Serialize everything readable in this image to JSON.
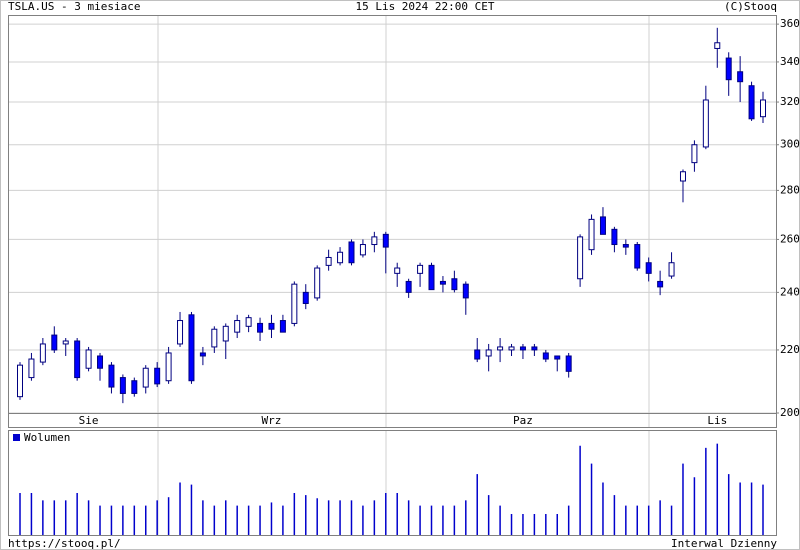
{
  "header": {
    "title": "TSLA.US - 3 miesiace",
    "date": "15 Lis 2024 22:00 CET",
    "credit": "(C)Stooq"
  },
  "footer": {
    "url": "https://stooq.pl/",
    "interval": "Interwal Dzienny"
  },
  "chart_data": [
    {
      "type": "candlestick",
      "log_scale": true,
      "grid": true,
      "up_color": "#ffffff",
      "down_color": "#0000ff",
      "categories": [
        null,
        null,
        null,
        null,
        null,
        null,
        "Sie",
        null,
        null,
        null,
        null,
        null,
        null,
        null,
        null,
        null,
        null,
        null,
        null,
        null,
        null,
        null,
        "Wrz",
        null,
        null,
        null,
        null,
        null,
        null,
        null,
        null,
        null,
        null,
        null,
        null,
        null,
        null,
        null,
        null,
        null,
        null,
        null,
        null,
        null,
        "Paz",
        null,
        null,
        null,
        null,
        null,
        null,
        null,
        null,
        null,
        null,
        null,
        null,
        null,
        null,
        null,
        null,
        "Lis",
        null,
        null,
        null,
        null
      ],
      "open": [
        205,
        211,
        216,
        225,
        222,
        223,
        214,
        218,
        215,
        211,
        210,
        208,
        214,
        210,
        222,
        232,
        219,
        221,
        223,
        226,
        228,
        229,
        229,
        230,
        229,
        240,
        238,
        250,
        251,
        259,
        254,
        258,
        262,
        247,
        244,
        247,
        250,
        244,
        245,
        243,
        220,
        218,
        220,
        220,
        221,
        221,
        219,
        218,
        218,
        245,
        256,
        269,
        264,
        258,
        258,
        251,
        244,
        246,
        284,
        292,
        299,
        347,
        342,
        335,
        328,
        313
      ],
      "high": [
        216,
        219,
        224,
        228,
        224,
        224,
        221,
        219,
        216,
        212,
        211,
        215,
        216,
        221,
        233,
        233,
        221,
        228,
        229,
        232,
        232,
        231,
        232,
        232,
        244,
        243,
        250,
        256,
        257,
        260,
        260,
        263,
        263,
        251,
        245,
        251,
        251,
        246,
        248,
        244,
        224,
        222,
        224,
        222,
        222,
        222,
        220,
        218,
        219,
        262,
        270,
        273,
        265,
        260,
        259,
        253,
        248,
        255,
        289,
        302,
        328,
        358,
        345,
        343,
        330,
        325
      ],
      "low": [
        204,
        210,
        215,
        219,
        218,
        210,
        213,
        210,
        206,
        203,
        205,
        206,
        208,
        209,
        221,
        209,
        215,
        219,
        217,
        224,
        226,
        223,
        224,
        226,
        228,
        234,
        237,
        248,
        250,
        250,
        253,
        255,
        247,
        242,
        238,
        242,
        241,
        240,
        240,
        232,
        216,
        213,
        216,
        218,
        217,
        218,
        216,
        213,
        211,
        242,
        254,
        262,
        255,
        254,
        248,
        244,
        239,
        245,
        275,
        288,
        298,
        337,
        323,
        320,
        311,
        310
      ],
      "close": [
        215,
        217,
        222,
        220,
        223,
        211,
        220,
        214,
        208,
        206,
        206,
        214,
        209,
        219,
        230,
        210,
        218,
        227,
        228,
        230,
        231,
        226,
        227,
        226,
        243,
        236,
        249,
        253,
        255,
        251,
        258,
        261,
        257,
        249,
        240,
        250,
        241,
        243,
        241,
        238,
        217,
        220,
        221,
        221,
        220,
        220,
        217,
        217,
        213,
        261,
        268,
        262,
        258,
        257,
        249,
        247,
        242,
        251,
        288,
        300,
        321,
        350,
        331,
        330,
        312,
        321
      ],
      "ylim": [
        200,
        365
      ],
      "yticks": [
        200,
        220,
        240,
        260,
        280,
        300,
        320,
        340,
        360
      ]
    },
    {
      "type": "bar",
      "ylim": [
        0,
        100
      ],
      "series": [
        {
          "name": "Wolumen",
          "color": "#0000cc",
          "values": [
            40,
            40,
            33,
            33,
            33,
            40,
            33,
            28,
            28,
            28,
            28,
            28,
            33,
            36,
            50,
            48,
            33,
            28,
            33,
            28,
            28,
            28,
            31,
            28,
            40,
            38,
            35,
            33,
            33,
            33,
            28,
            33,
            40,
            40,
            33,
            28,
            28,
            28,
            28,
            33,
            58,
            38,
            28,
            20,
            20,
            20,
            20,
            20,
            28,
            85,
            68,
            50,
            38,
            28,
            28,
            28,
            33,
            28,
            68,
            55,
            83,
            87,
            58,
            50,
            50,
            48
          ]
        }
      ]
    }
  ]
}
